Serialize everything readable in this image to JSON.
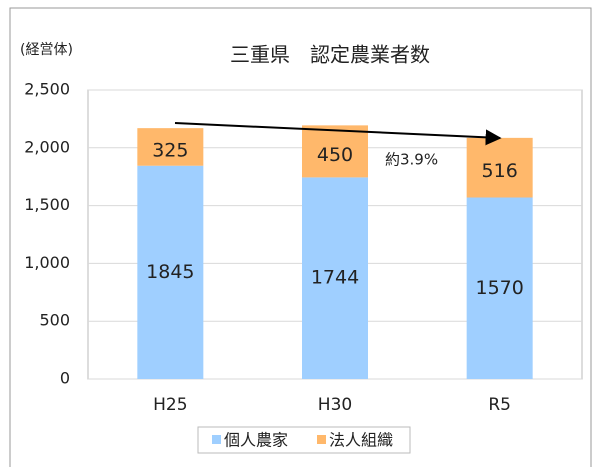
{
  "chart_data": {
    "type": "stacked_bar",
    "title": "三重県　認定農業者数",
    "y_axis_label": "(経営体)",
    "annotation": "約3.9%",
    "categories": [
      "H25",
      "H30",
      "R5"
    ],
    "series": [
      {
        "name": "個人農家",
        "color": "#9fcfff",
        "values": [
          1845,
          1744,
          1570
        ]
      },
      {
        "name": "法人組織",
        "color": "#ffb86b",
        "values": [
          325,
          450,
          516
        ]
      }
    ],
    "ylim": [
      0,
      2500
    ],
    "yticks": [
      0,
      500,
      {
        "value": 1000,
        "label": "1,000"
      },
      {
        "value": 1500,
        "label": "1,500"
      },
      {
        "value": 2000,
        "label": "2,000"
      },
      {
        "value": 2500,
        "label": "2,500"
      }
    ],
    "grid": true,
    "legend": "bottom"
  }
}
